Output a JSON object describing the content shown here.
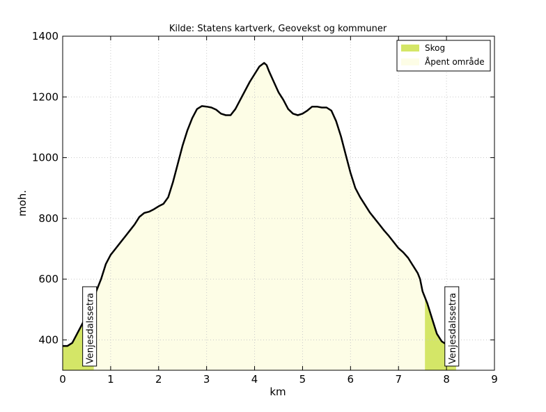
{
  "chart_data": {
    "type": "area",
    "title": "Kilde: Statens kartverk, Geovekst og kommuner",
    "xlabel": "km",
    "ylabel": "moh.",
    "xlim": [
      0,
      9
    ],
    "ylim": [
      300,
      1400
    ],
    "x_ticks": [
      0,
      1,
      2,
      3,
      4,
      5,
      6,
      7,
      8,
      9
    ],
    "y_ticks": [
      400,
      600,
      800,
      1000,
      1200,
      1400
    ],
    "grid": true,
    "legend_position": "top-right",
    "colors": {
      "forest": "#d4e667",
      "open": "#fdfde6",
      "line": "#000000",
      "grid": "#c8c8c8"
    },
    "series": [
      {
        "name": "Skog",
        "color": "#d4e667",
        "x_ranges": [
          [
            0,
            0.65
          ],
          [
            7.55,
            8.2
          ]
        ]
      },
      {
        "name": "Åpent område",
        "color": "#fdfde6",
        "x_ranges": [
          [
            0.65,
            7.55
          ]
        ]
      }
    ],
    "profile": {
      "x": [
        0,
        0.1,
        0.2,
        0.3,
        0.4,
        0.5,
        0.6,
        0.65,
        0.7,
        0.8,
        0.9,
        1.0,
        1.1,
        1.2,
        1.3,
        1.4,
        1.5,
        1.6,
        1.7,
        1.8,
        1.9,
        2.0,
        2.1,
        2.2,
        2.3,
        2.4,
        2.5,
        2.6,
        2.7,
        2.8,
        2.9,
        3.0,
        3.1,
        3.2,
        3.3,
        3.4,
        3.5,
        3.6,
        3.7,
        3.8,
        3.9,
        4.0,
        4.1,
        4.2,
        4.25,
        4.3,
        4.4,
        4.5,
        4.6,
        4.7,
        4.8,
        4.9,
        5.0,
        5.1,
        5.2,
        5.3,
        5.4,
        5.5,
        5.6,
        5.7,
        5.8,
        5.9,
        6.0,
        6.1,
        6.2,
        6.3,
        6.4,
        6.5,
        6.6,
        6.7,
        6.8,
        6.9,
        7.0,
        7.1,
        7.2,
        7.3,
        7.4,
        7.45,
        7.5,
        7.6,
        7.7,
        7.8,
        7.9,
        8.0,
        8.1,
        8.2
      ],
      "y": [
        380,
        380,
        390,
        420,
        450,
        480,
        510,
        530,
        560,
        600,
        650,
        680,
        700,
        720,
        740,
        760,
        780,
        805,
        818,
        822,
        830,
        840,
        848,
        870,
        920,
        980,
        1040,
        1090,
        1130,
        1160,
        1170,
        1168,
        1165,
        1158,
        1145,
        1140,
        1140,
        1160,
        1190,
        1220,
        1250,
        1275,
        1300,
        1312,
        1305,
        1285,
        1250,
        1215,
        1190,
        1160,
        1145,
        1140,
        1145,
        1155,
        1168,
        1168,
        1165,
        1165,
        1155,
        1120,
        1070,
        1010,
        950,
        900,
        870,
        845,
        820,
        800,
        780,
        760,
        742,
        722,
        702,
        688,
        670,
        645,
        620,
        600,
        560,
        520,
        470,
        420,
        395,
        385,
        380,
        378
      ]
    },
    "legend": [
      {
        "label": "Skog",
        "color": "#d4e667"
      },
      {
        "label": "Åpent område",
        "color": "#fdfde6"
      }
    ],
    "annotations": [
      {
        "text": "Venjesdalssetra",
        "x": 0.3,
        "y": 600,
        "anchor": "bottom"
      },
      {
        "text": "Venjesdalssetra",
        "x": 7.85,
        "y": 600,
        "anchor": "bottom"
      }
    ]
  }
}
